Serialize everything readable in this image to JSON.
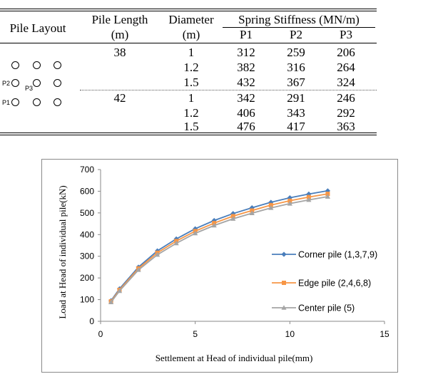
{
  "table": {
    "headers": {
      "layout": "Pile Layout",
      "length": "Pile Length",
      "length_unit": "(m)",
      "diameter": "Diameter",
      "diameter_unit": "(m)",
      "spring": "Spring Stiffness (MN/m)",
      "p1": "P1",
      "p2": "P2",
      "p3": "P3"
    },
    "layout_labels": {
      "p1": "P1",
      "p2": "P2",
      "p3": "P3"
    },
    "rows": [
      {
        "length": "38",
        "diameter": "1",
        "p1": "312",
        "p2": "259",
        "p3": "206"
      },
      {
        "length": "",
        "diameter": "1.2",
        "p1": "382",
        "p2": "316",
        "p3": "264"
      },
      {
        "length": "",
        "diameter": "1.5",
        "p1": "432",
        "p2": "367",
        "p3": "324"
      },
      {
        "length": "42",
        "diameter": "1",
        "p1": "342",
        "p2": "291",
        "p3": "246"
      },
      {
        "length": "",
        "diameter": "1.2",
        "p1": "406",
        "p2": "343",
        "p3": "292"
      },
      {
        "length": "",
        "diameter": "1.5",
        "p1": "476",
        "p2": "417",
        "p3": "363"
      }
    ]
  },
  "chart_data": {
    "type": "line",
    "xlabel": "Settlement at Head of individual pile(mm)",
    "ylabel": "Load at Head of individual pile(kN)",
    "xlim": [
      0,
      15
    ],
    "ylim": [
      0,
      700
    ],
    "xticks": [
      "0",
      "5",
      "10",
      "15"
    ],
    "yticks": [
      "0",
      "100",
      "200",
      "300",
      "400",
      "500",
      "600",
      "700"
    ],
    "grid": false,
    "legend_position": "right",
    "series": [
      {
        "name": "Corner pile (1,3,7,9)",
        "color": "#4a7ebb",
        "marker": "diamond",
        "x": [
          0.55,
          1.0,
          2.0,
          3.0,
          4.0,
          5.0,
          6.0,
          7.0,
          8.0,
          9.0,
          10.0,
          11.0,
          12.0
        ],
        "y": [
          95,
          150,
          250,
          325,
          380,
          427,
          465,
          497,
          524,
          549,
          570,
          587,
          602
        ]
      },
      {
        "name": "Edge pile (2,4,6,8)",
        "color": "#f79646",
        "marker": "square",
        "x": [
          0.55,
          1.0,
          2.0,
          3.0,
          4.0,
          5.0,
          6.0,
          7.0,
          8.0,
          9.0,
          10.0,
          11.0,
          12.0
        ],
        "y": [
          92,
          145,
          244,
          316,
          370,
          416,
          453,
          485,
          511,
          536,
          556,
          573,
          588
        ]
      },
      {
        "name": "Center pile (5)",
        "color": "#a5a5a5",
        "marker": "triangle",
        "x": [
          0.55,
          1.0,
          2.0,
          3.0,
          4.0,
          5.0,
          6.0,
          7.0,
          8.0,
          9.0,
          10.0,
          11.0,
          12.0
        ],
        "y": [
          88,
          140,
          237,
          307,
          360,
          406,
          442,
          473,
          499,
          523,
          543,
          560,
          575
        ]
      }
    ]
  }
}
